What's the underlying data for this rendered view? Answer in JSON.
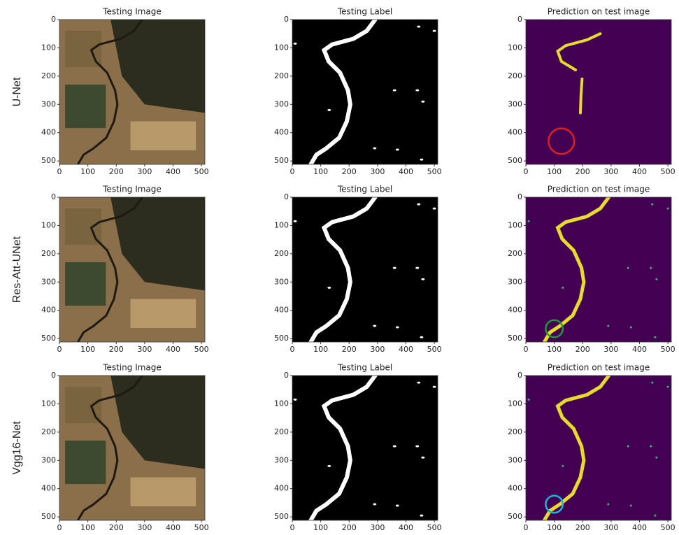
{
  "axes": {
    "xlim": [
      0,
      512
    ],
    "ylim": [
      512,
      0
    ],
    "xticks": [
      0,
      100,
      200,
      300,
      400,
      500
    ],
    "yticks": [
      0,
      100,
      200,
      300,
      400,
      500
    ]
  },
  "rows": [
    {
      "label": "U-Net",
      "highlight_color": "#e02020",
      "panels": [
        {
          "title": "Testing Image"
        },
        {
          "title": "Testing Label"
        },
        {
          "title": "Prediction on test image"
        }
      ]
    },
    {
      "label": "Res-Att-UNet",
      "highlight_color": "#1e9a3a",
      "panels": [
        {
          "title": "Testing Image"
        },
        {
          "title": "Testing Label"
        },
        {
          "title": "Prediction on test image"
        }
      ]
    },
    {
      "label": "Vgg16-Net",
      "highlight_color": "#19b8d8",
      "panels": [
        {
          "title": "Testing Image"
        },
        {
          "title": "Testing Label"
        },
        {
          "title": "Prediction on test image"
        }
      ]
    }
  ]
}
